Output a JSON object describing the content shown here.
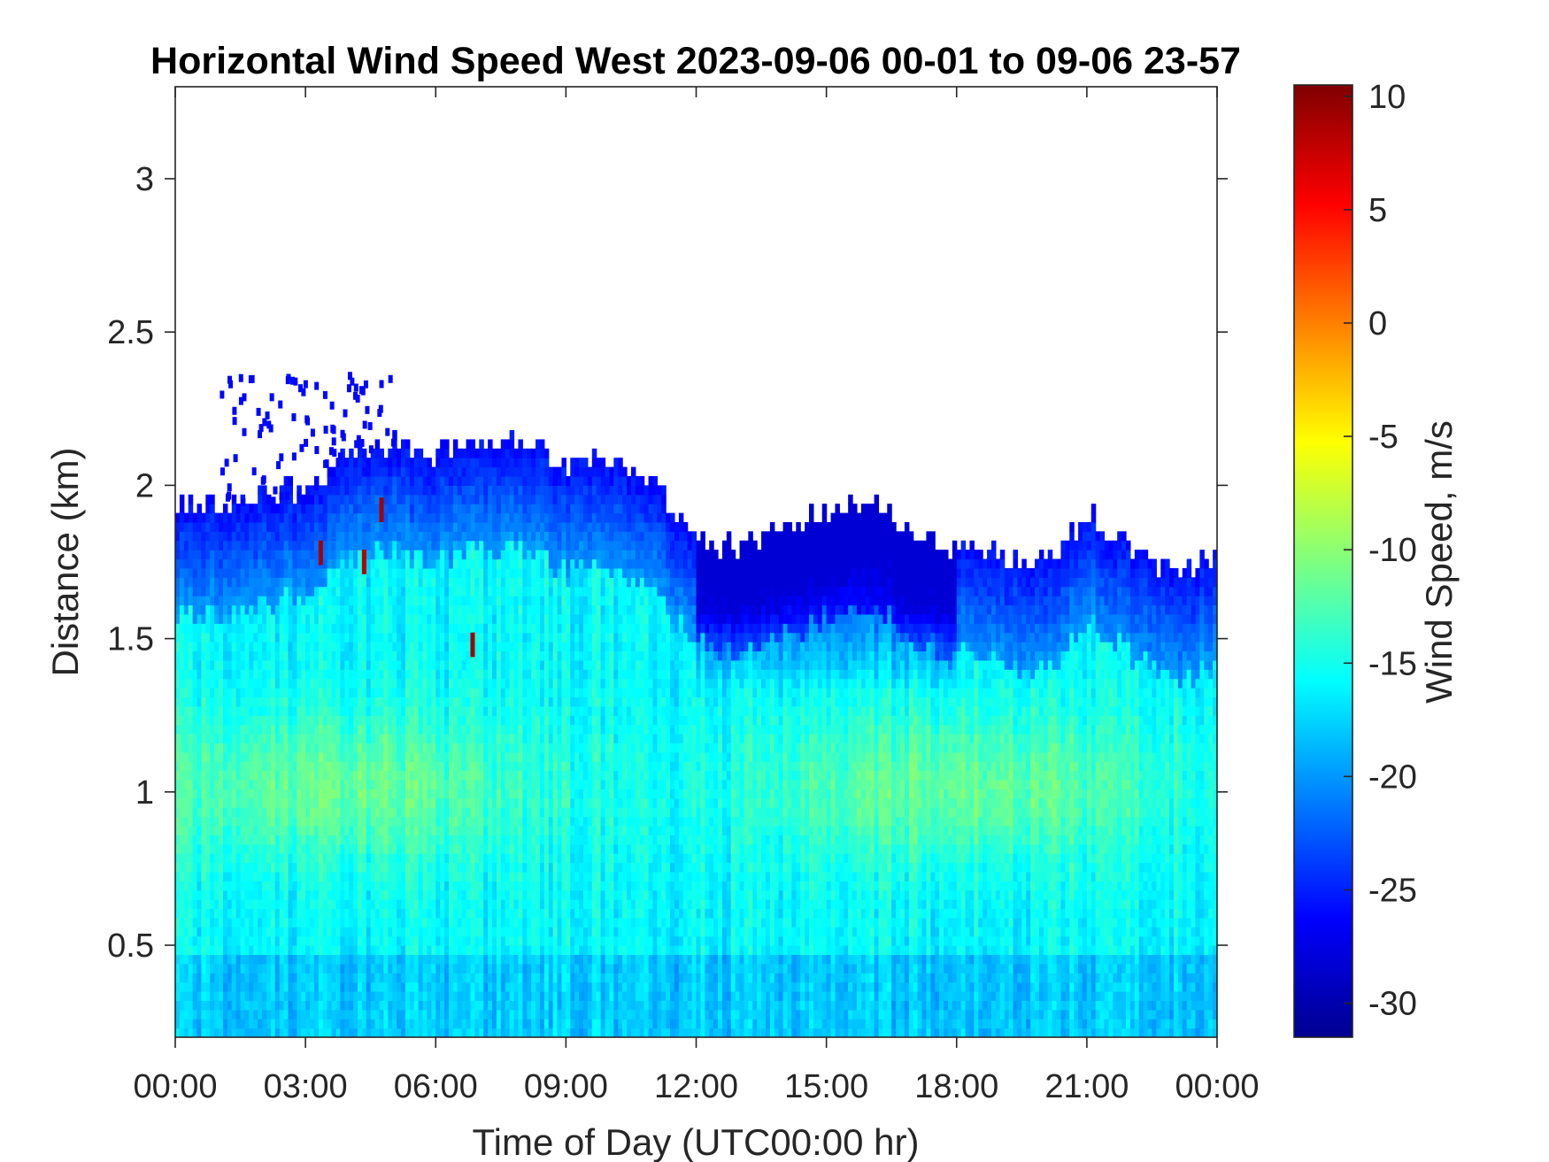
{
  "chart_data": {
    "type": "heatmap",
    "title": "Horizontal Wind Speed West 2023-09-06 00-01 to 09-06 23-57",
    "xlabel": "Time of Day (UTC00:00 hr)",
    "ylabel": "Distance (km)",
    "x_tick_labels": [
      "00:00",
      "03:00",
      "06:00",
      "09:00",
      "12:00",
      "15:00",
      "18:00",
      "21:00",
      "00:00"
    ],
    "x_ticks_hours": [
      0,
      3,
      6,
      9,
      12,
      15,
      18,
      21,
      24
    ],
    "xlim_hours": [
      0,
      24
    ],
    "y_ticks": [
      0.5,
      1,
      1.5,
      2,
      2.5,
      3
    ],
    "y_tick_labels": [
      "0.5",
      "1",
      "1.5",
      "2",
      "2.5",
      "3"
    ],
    "ylim": [
      0.2,
      3.3
    ],
    "colorbar": {
      "label": "Wind Speed, m/s",
      "ticks": [
        10,
        5,
        0,
        -5,
        -10,
        -15,
        -20,
        -25,
        -30
      ],
      "tick_labels": [
        "10",
        "5",
        "0",
        "-5",
        "-10",
        "-15",
        "-20",
        "-25",
        "-30"
      ],
      "range": [
        -31.5,
        10.5
      ],
      "colormap": "jet"
    },
    "data_top_km": {
      "hours": [
        0,
        1,
        2,
        3,
        4,
        5,
        6,
        7,
        8,
        9,
        10,
        11,
        12,
        13,
        14,
        15,
        16,
        17,
        18,
        19,
        20,
        21,
        22,
        23,
        24
      ],
      "km": [
        1.93,
        1.92,
        1.95,
        1.98,
        2.1,
        2.12,
        2.08,
        2.12,
        2.14,
        2.05,
        2.08,
        2.0,
        1.82,
        1.78,
        1.85,
        1.9,
        1.96,
        1.82,
        1.78,
        1.76,
        1.72,
        1.9,
        1.78,
        1.7,
        1.75
      ]
    },
    "scattered_echo_top_km": 2.37,
    "typical_speed_ms": {
      "below_1.5_km": -16,
      "near_top_of_data": -26,
      "local_maxima_near_1_km": -10
    },
    "positive_speed_spots": [
      {
        "hour": 3.3,
        "km": 1.78,
        "value": 9
      },
      {
        "hour": 4.3,
        "km": 1.75,
        "value": 8
      },
      {
        "hour": 4.7,
        "km": 1.92,
        "value": 9
      },
      {
        "hour": 6.8,
        "km": 1.48,
        "value": 9
      }
    ],
    "grid": false,
    "box": true
  }
}
